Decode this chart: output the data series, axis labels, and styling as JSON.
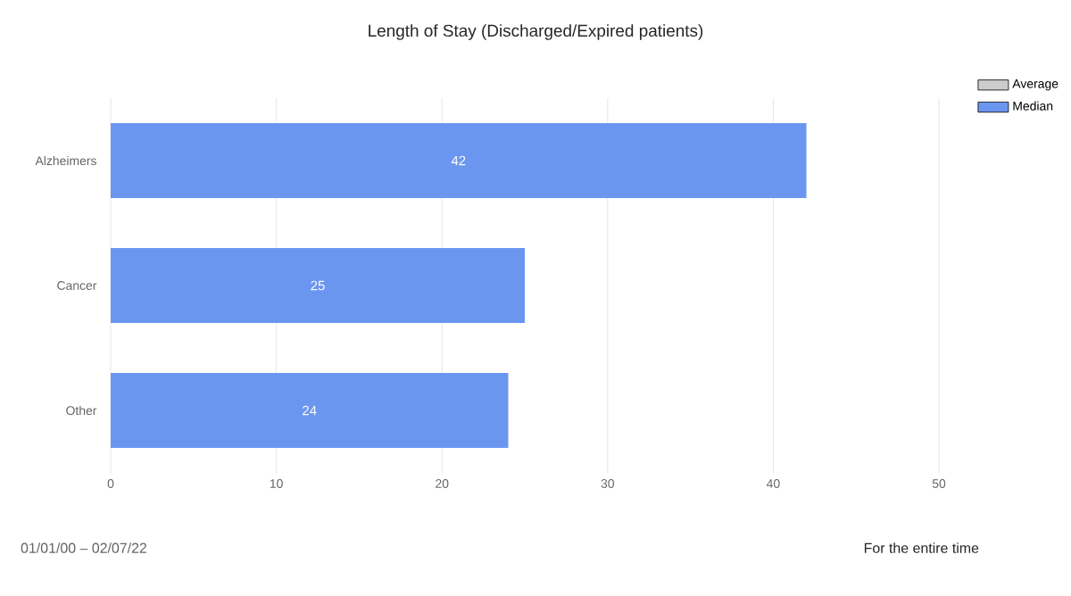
{
  "chart_data": {
    "type": "bar",
    "orientation": "horizontal",
    "title": "Length of Stay (Discharged/Expired patients)",
    "categories": [
      "Alzheimers",
      "Cancer",
      "Other"
    ],
    "series": [
      {
        "name": "Average",
        "color": "#cccccc",
        "values": [
          null,
          null,
          null
        ]
      },
      {
        "name": "Median",
        "color": "#6b96f0",
        "values": [
          42,
          25,
          24
        ]
      }
    ],
    "xlim": [
      0,
      50
    ],
    "xticks": [
      0,
      10,
      20,
      30,
      40,
      50
    ],
    "grid": "x",
    "legend": "top right",
    "data_labels": true,
    "annotations": [
      "01/01/00 – 02/07/22",
      "For the entire time"
    ]
  }
}
